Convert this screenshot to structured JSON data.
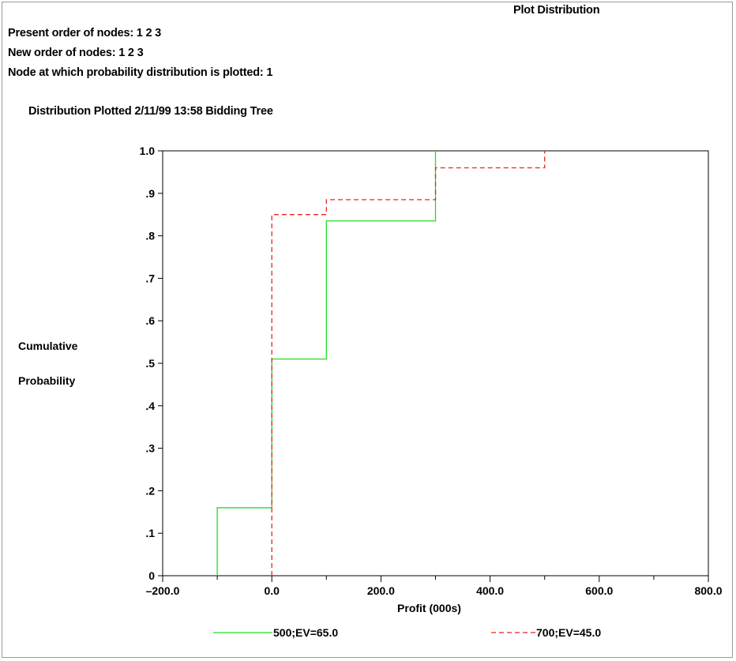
{
  "window": {
    "title": "Plot Distribution"
  },
  "header": {
    "present_order": "Present order of nodes: 1 2 3",
    "new_order": "New order of nodes: 1 2 3",
    "node_plotted": "Node at which probability distribution is plotted: 1",
    "distribution_line": "Distribution Plotted  2/11/99  13:58  Bidding Tree"
  },
  "chart_data": {
    "type": "line",
    "subtype": "step-cdf",
    "xlabel": "Profit (000s)",
    "ylabel_lines": [
      "Cumulative",
      "Probability"
    ],
    "xlim": [
      -200,
      800
    ],
    "ylim": [
      0,
      1
    ],
    "x_ticks": [
      {
        "value": -200,
        "label": "–200.0"
      },
      {
        "value": 0,
        "label": "0.0"
      },
      {
        "value": 200,
        "label": "200.0"
      },
      {
        "value": 400,
        "label": "400.0"
      },
      {
        "value": 600,
        "label": "600.0"
      },
      {
        "value": 800,
        "label": "800.0"
      }
    ],
    "x_minor_ticks": [
      -100,
      100,
      300,
      500,
      700
    ],
    "y_ticks": [
      {
        "value": 0,
        "label": "0"
      },
      {
        "value": 0.1,
        "label": ".1"
      },
      {
        "value": 0.2,
        "label": ".2"
      },
      {
        "value": 0.3,
        "label": ".3"
      },
      {
        "value": 0.4,
        "label": ".4"
      },
      {
        "value": 0.5,
        "label": ".5"
      },
      {
        "value": 0.6,
        "label": ".6"
      },
      {
        "value": 0.7,
        "label": ".7"
      },
      {
        "value": 0.8,
        "label": ".8"
      },
      {
        "value": 0.9,
        "label": ".9"
      },
      {
        "value": 1.0,
        "label": "1.0"
      }
    ],
    "grid": false,
    "legend_position": "bottom",
    "series": [
      {
        "name": "500;EV=65.0",
        "color": "#22dd22",
        "dash": "solid",
        "steps": [
          {
            "x": -100,
            "y": 0.16
          },
          {
            "x": 0,
            "y": 0.51
          },
          {
            "x": 100,
            "y": 0.835
          },
          {
            "x": 300,
            "y": 1.0
          }
        ]
      },
      {
        "name": "700;EV=45.0",
        "color": "#ee2222",
        "dash": "dashed",
        "steps": [
          {
            "x": 0,
            "y": 0.85
          },
          {
            "x": 100,
            "y": 0.885
          },
          {
            "x": 300,
            "y": 0.96
          },
          {
            "x": 500,
            "y": 1.0
          }
        ]
      }
    ]
  }
}
